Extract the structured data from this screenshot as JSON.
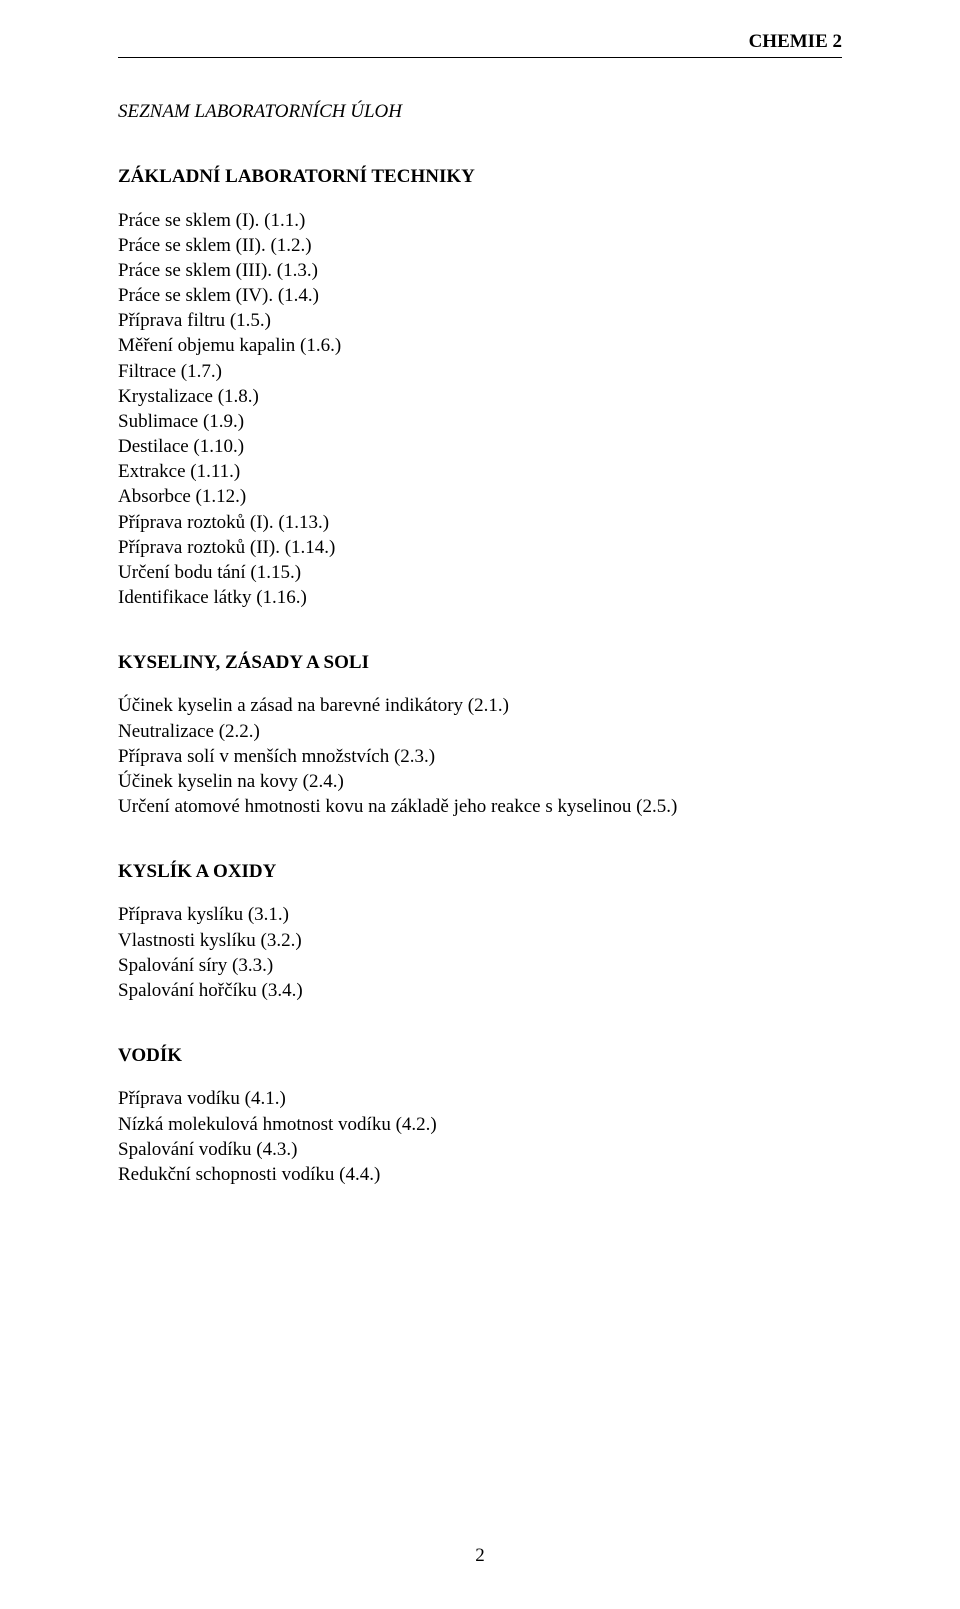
{
  "header": {
    "course_label": "CHEMIE 2"
  },
  "main_heading": "SEZNAM LABORATORNÍCH ÚLOH",
  "sections": {
    "techniky": {
      "title": "ZÁKLADNÍ LABORATORNÍ TECHNIKY",
      "items": [
        "Práce se sklem (I).  (1.1.)",
        "Práce se sklem (II).  (1.2.)",
        "Práce se sklem (III).  (1.3.)",
        "Práce se sklem (IV).  (1.4.)",
        "Příprava filtru  (1.5.)",
        "Měření objemu kapalin  (1.6.)",
        "Filtrace  (1.7.)",
        "Krystalizace  (1.8.)",
        "Sublimace  (1.9.)",
        "Destilace  (1.10.)",
        "Extrakce  (1.11.)",
        "Absorbce  (1.12.)",
        "Příprava roztoků (I).  (1.13.)",
        "Příprava roztoků (II).  (1.14.)",
        "Určení bodu tání  (1.15.)",
        "Identifikace látky  (1.16.)"
      ]
    },
    "kyseliny": {
      "title": "KYSELINY, ZÁSADY A SOLI",
      "items": [
        "Účinek kyselin a zásad na barevné indikátory  (2.1.)",
        "Neutralizace  (2.2.)",
        "Příprava solí v menších množstvích  (2.3.)",
        "Účinek kyselin na kovy  (2.4.)",
        "Určení atomové hmotnosti kovu na základě jeho reakce s kyselinou  (2.5.)"
      ]
    },
    "kyslik": {
      "title": "KYSLÍK A OXIDY",
      "items": [
        "Příprava kyslíku  (3.1.)",
        "Vlastnosti kyslíku  (3.2.)",
        "Spalování síry  (3.3.)",
        "Spalování hořčíku  (3.4.)"
      ]
    },
    "vodik": {
      "title": "VODÍK",
      "items": [
        "Příprava vodíku  (4.1.)",
        "Nízká molekulová hmotnost vodíku  (4.2.)",
        "Spalování vodíku  (4.3.)",
        "Redukční schopnosti vodíku  (4.4.)"
      ]
    }
  },
  "page_number": "2"
}
